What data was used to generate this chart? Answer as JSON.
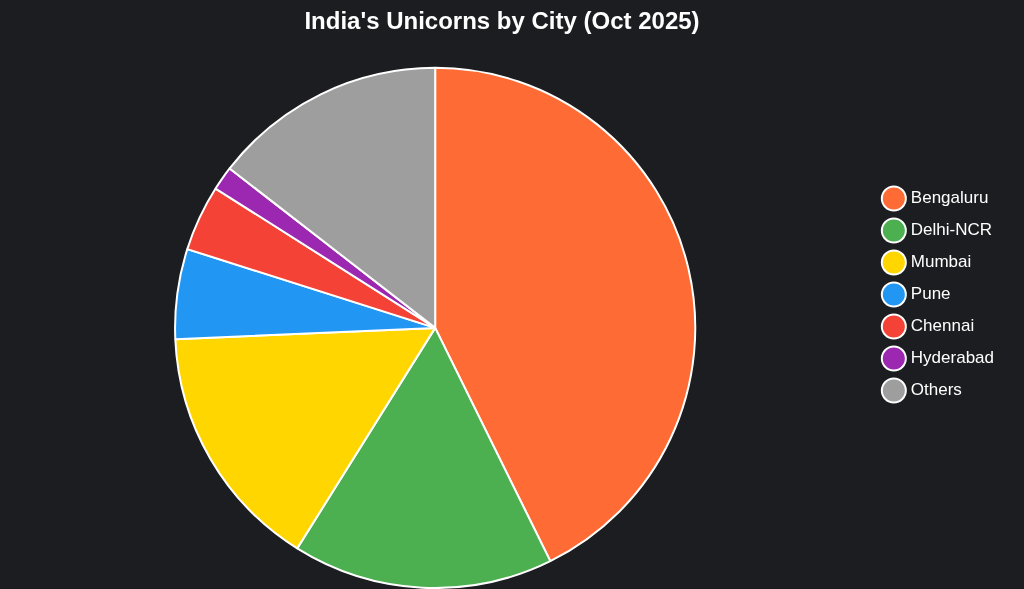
{
  "chart_data": {
    "type": "pie",
    "title": "India's Unicorns by City (Oct 2025)",
    "categories": [
      "Bengaluru",
      "Delhi-NCR",
      "Mumbai",
      "Pune",
      "Chennai",
      "Hyderabad",
      "Others"
    ],
    "values": [
      42.7,
      16.2,
      15.4,
      5.6,
      4.1,
      1.5,
      14.5
    ],
    "colors": [
      "#ff6b35",
      "#4caf50",
      "#ffd600",
      "#2196f3",
      "#f44336",
      "#9c27b0",
      "#9e9e9e"
    ],
    "legend": "right"
  }
}
